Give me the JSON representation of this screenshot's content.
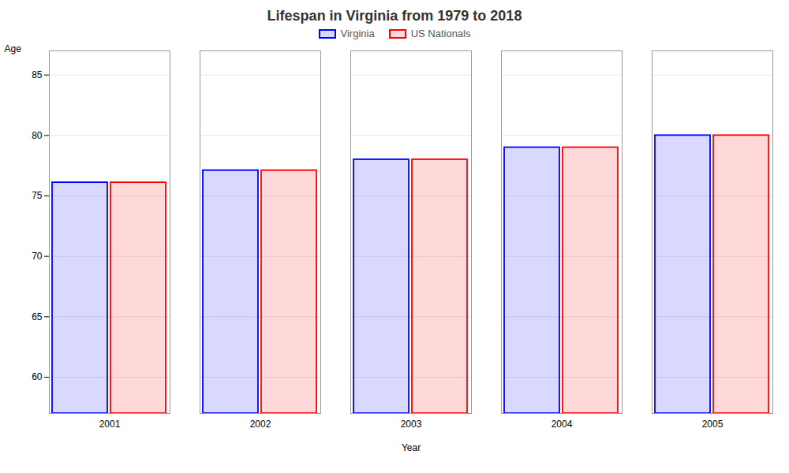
{
  "chart_data": {
    "type": "bar",
    "title": "Lifespan in Virginia from 1979 to 2018",
    "x_label": "Year",
    "y_label": "Age",
    "categories": [
      "2001",
      "2002",
      "2003",
      "2004",
      "2005"
    ],
    "series": [
      {
        "name": "Virginia",
        "color": "#0000ff",
        "values": [
          76.1,
          77.1,
          78.0,
          79.0,
          80.0
        ]
      },
      {
        "name": "US Nationals",
        "color": "#ff0000",
        "values": [
          76.1,
          77.1,
          78.0,
          79.0,
          80.0
        ]
      }
    ],
    "ylim": [
      57,
      87
    ],
    "yticks": [
      60,
      65,
      70,
      75,
      80,
      85
    ],
    "grid": true,
    "legend": "top"
  }
}
